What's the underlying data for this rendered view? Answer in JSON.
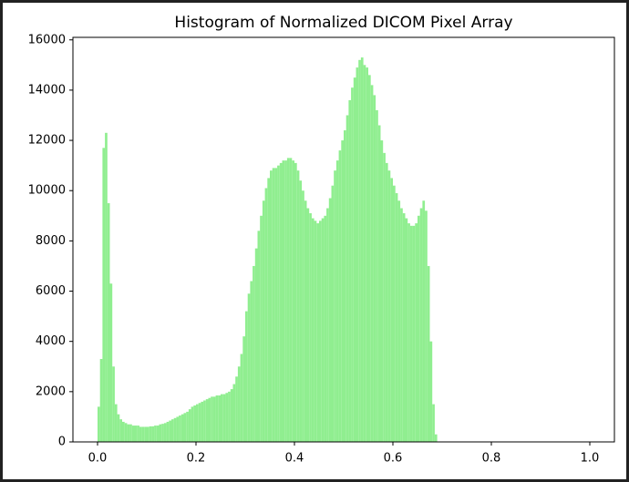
{
  "chart_data": {
    "type": "histogram",
    "title": "Histogram of Normalized DICOM Pixel Array",
    "color": "#90ee90",
    "bins": [
      0,
      0.005,
      0.01,
      0.015,
      0.02,
      0.025,
      0.03,
      0.035,
      0.04,
      0.045,
      0.05,
      0.055,
      0.06,
      0.065,
      0.07,
      0.075,
      0.08,
      0.085,
      0.09,
      0.095,
      0.1,
      0.105,
      0.11,
      0.115,
      0.12,
      0.125,
      0.13,
      0.135,
      0.14,
      0.145,
      0.15,
      0.155,
      0.16,
      0.165,
      0.17,
      0.175,
      0.18,
      0.185,
      0.19,
      0.195,
      0.2,
      0.205,
      0.21,
      0.215,
      0.22,
      0.225,
      0.23,
      0.235,
      0.24,
      0.245,
      0.25,
      0.255,
      0.26,
      0.265,
      0.27,
      0.275,
      0.28,
      0.285,
      0.29,
      0.295,
      0.3,
      0.305,
      0.31,
      0.315,
      0.32,
      0.325,
      0.33,
      0.335,
      0.34,
      0.345,
      0.35,
      0.355,
      0.36,
      0.365,
      0.37,
      0.375,
      0.38,
      0.385,
      0.39,
      0.395,
      0.4,
      0.405,
      0.41,
      0.415,
      0.42,
      0.425,
      0.43,
      0.435,
      0.44,
      0.445,
      0.45,
      0.455,
      0.46,
      0.465,
      0.47,
      0.475,
      0.48,
      0.485,
      0.49,
      0.495,
      0.5,
      0.505,
      0.51,
      0.515,
      0.52,
      0.525,
      0.53,
      0.535,
      0.54,
      0.545,
      0.55,
      0.555,
      0.56,
      0.565,
      0.57,
      0.575,
      0.58,
      0.585,
      0.59,
      0.595,
      0.6,
      0.605,
      0.61,
      0.615,
      0.62,
      0.625,
      0.63,
      0.635,
      0.64,
      0.645,
      0.65,
      0.655,
      0.66,
      0.665,
      0.67,
      0.675,
      0.68,
      0.685,
      0.69
    ],
    "counts": [
      1400,
      3300,
      11700,
      12300,
      9500,
      6300,
      3000,
      1500,
      1100,
      900,
      800,
      750,
      700,
      700,
      650,
      650,
      650,
      600,
      600,
      600,
      600,
      620,
      620,
      650,
      650,
      700,
      720,
      750,
      800,
      850,
      900,
      950,
      1000,
      1050,
      1100,
      1150,
      1200,
      1300,
      1400,
      1450,
      1500,
      1550,
      1600,
      1650,
      1700,
      1750,
      1800,
      1800,
      1850,
      1850,
      1900,
      1900,
      1950,
      2000,
      2100,
      2300,
      2600,
      3000,
      3500,
      4200,
      5200,
      5900,
      6400,
      7000,
      7700,
      8400,
      9000,
      9600,
      10100,
      10500,
      10800,
      10900,
      10900,
      11000,
      11100,
      11200,
      11200,
      11300,
      11300,
      11200,
      11100,
      10800,
      10400,
      10000,
      9600,
      9300,
      9100,
      8900,
      8800,
      8700,
      8800,
      8900,
      9000,
      9300,
      9700,
      10200,
      10800,
      11200,
      11600,
      12000,
      12400,
      13000,
      13600,
      14100,
      14500,
      14900,
      15200,
      15300,
      15000,
      14900,
      14600,
      14200,
      13800,
      13200,
      12600,
      12000,
      11500,
      11100,
      10800,
      10500,
      10200,
      9900,
      9600,
      9300,
      9100,
      8900,
      8700,
      8600,
      8600,
      8700,
      9000,
      9300,
      9600,
      9200,
      7000,
      4000,
      1500,
      300
    ],
    "xlim": [
      -0.05,
      1.05
    ],
    "xticks": [
      {
        "value": 0,
        "label": "0.0"
      },
      {
        "value": 0.2,
        "label": "0.2"
      },
      {
        "value": 0.4,
        "label": "0.4"
      },
      {
        "value": 0.6,
        "label": "0.6"
      },
      {
        "value": 0.8,
        "label": "0.8"
      },
      {
        "value": 1,
        "label": "1.0"
      }
    ],
    "ylim": [
      0,
      16100
    ],
    "yticks": [
      0,
      2000,
      4000,
      6000,
      8000,
      10000,
      12000,
      14000,
      16000
    ]
  }
}
